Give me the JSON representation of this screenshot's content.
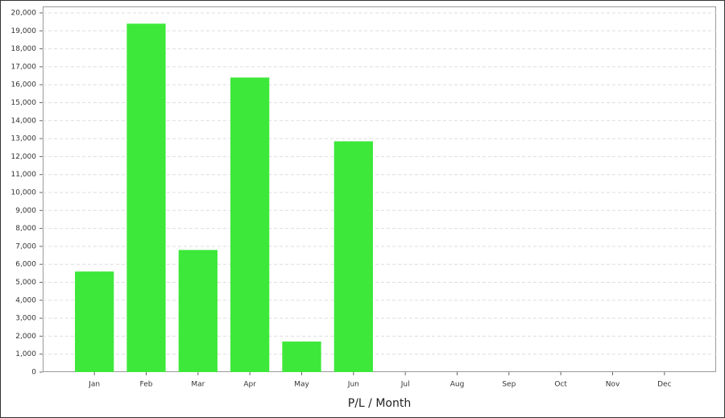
{
  "chart_data": {
    "type": "bar",
    "xlabel": "P/L / Month",
    "categories": [
      "Jan",
      "Feb",
      "Mar",
      "Apr",
      "May",
      "Jun",
      "Jul",
      "Aug",
      "Sep",
      "Oct",
      "Nov",
      "Dec"
    ],
    "values": [
      5600,
      19400,
      6800,
      16400,
      1700,
      12850,
      null,
      null,
      null,
      null,
      null,
      null
    ],
    "color": "#3de83a",
    "ylim": [
      0,
      20000
    ],
    "yticks": [
      0,
      {
        "value": 1000,
        "label": "1,000"
      },
      {
        "value": 2000,
        "label": "2,000"
      },
      {
        "value": 3000,
        "label": "3,000"
      },
      {
        "value": 4000,
        "label": "4,000"
      },
      {
        "value": 5000,
        "label": "5,000"
      },
      {
        "value": 6000,
        "label": "6,000"
      },
      {
        "value": 7000,
        "label": "7,000"
      },
      {
        "value": 8000,
        "label": "8,000"
      },
      {
        "value": 9000,
        "label": "9,000"
      },
      {
        "value": 10000,
        "label": "10,000"
      },
      {
        "value": 11000,
        "label": "11,000"
      },
      {
        "value": 12000,
        "label": "12,000"
      },
      {
        "value": 13000,
        "label": "13,000"
      },
      {
        "value": 14000,
        "label": "14,000"
      },
      {
        "value": 15000,
        "label": "15,000"
      },
      {
        "value": 16000,
        "label": "16,000"
      },
      {
        "value": 17000,
        "label": "17,000"
      },
      {
        "value": 18000,
        "label": "18,000"
      },
      {
        "value": 19000,
        "label": "19,000"
      },
      {
        "value": 20000,
        "label": "20,000"
      }
    ],
    "grid": true
  }
}
